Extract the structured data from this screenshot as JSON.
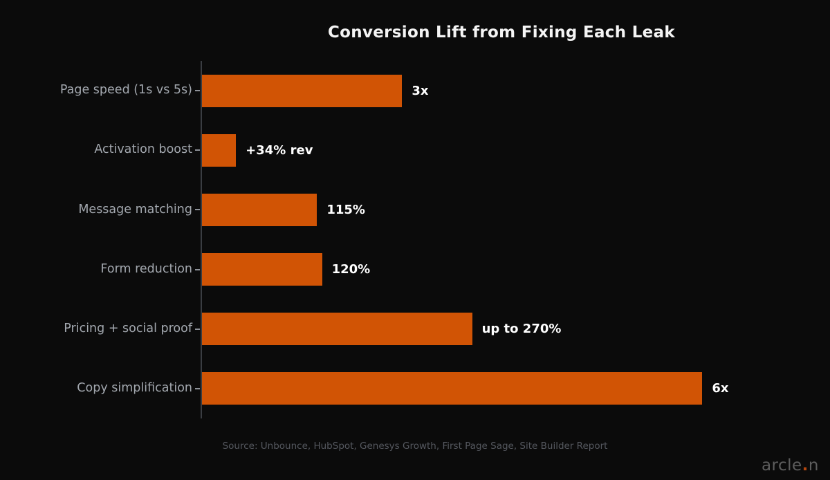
{
  "title": "Conversion Lift from Fixing Each Leak",
  "source_note": "Source: Unbounce, HubSpot, Genesys Growth, First Page Sage, Site Builder Report",
  "brand": {
    "prefix": "arcle",
    "dot": ".",
    "suffix": "n"
  },
  "colors": {
    "background": "#0b0b0b",
    "bar": "#d15405",
    "title_text": "#f5f5f5",
    "value_label_text": "#ffffff",
    "category_label_text": "#a3a8af",
    "axis_line": "#3a3d42",
    "tick_mark": "#8d9198",
    "source_text": "#55585f",
    "brand_text": "#5d5d5d",
    "brand_dot": "#b5470f"
  },
  "chart_data": {
    "type": "bar",
    "orientation": "horizontal",
    "title": "Conversion Lift from Fixing Each Leak",
    "categories": [
      "Page speed (1s vs 5s)",
      "Activation boost",
      "Message matching",
      "Form reduction",
      "Pricing + social proof",
      "Copy simplification"
    ],
    "values": [
      200,
      34,
      115,
      120,
      270,
      500
    ],
    "value_labels": [
      "3x",
      "+34% rev",
      "115%",
      "120%",
      "up to 270%",
      "6x"
    ],
    "values_note": "approximate % conversion lift implied by bar lengths",
    "xlabel": "",
    "ylabel": "",
    "xlim": [
      0,
      600
    ],
    "grid": false,
    "legend": false,
    "bar_color": "#d15405"
  }
}
